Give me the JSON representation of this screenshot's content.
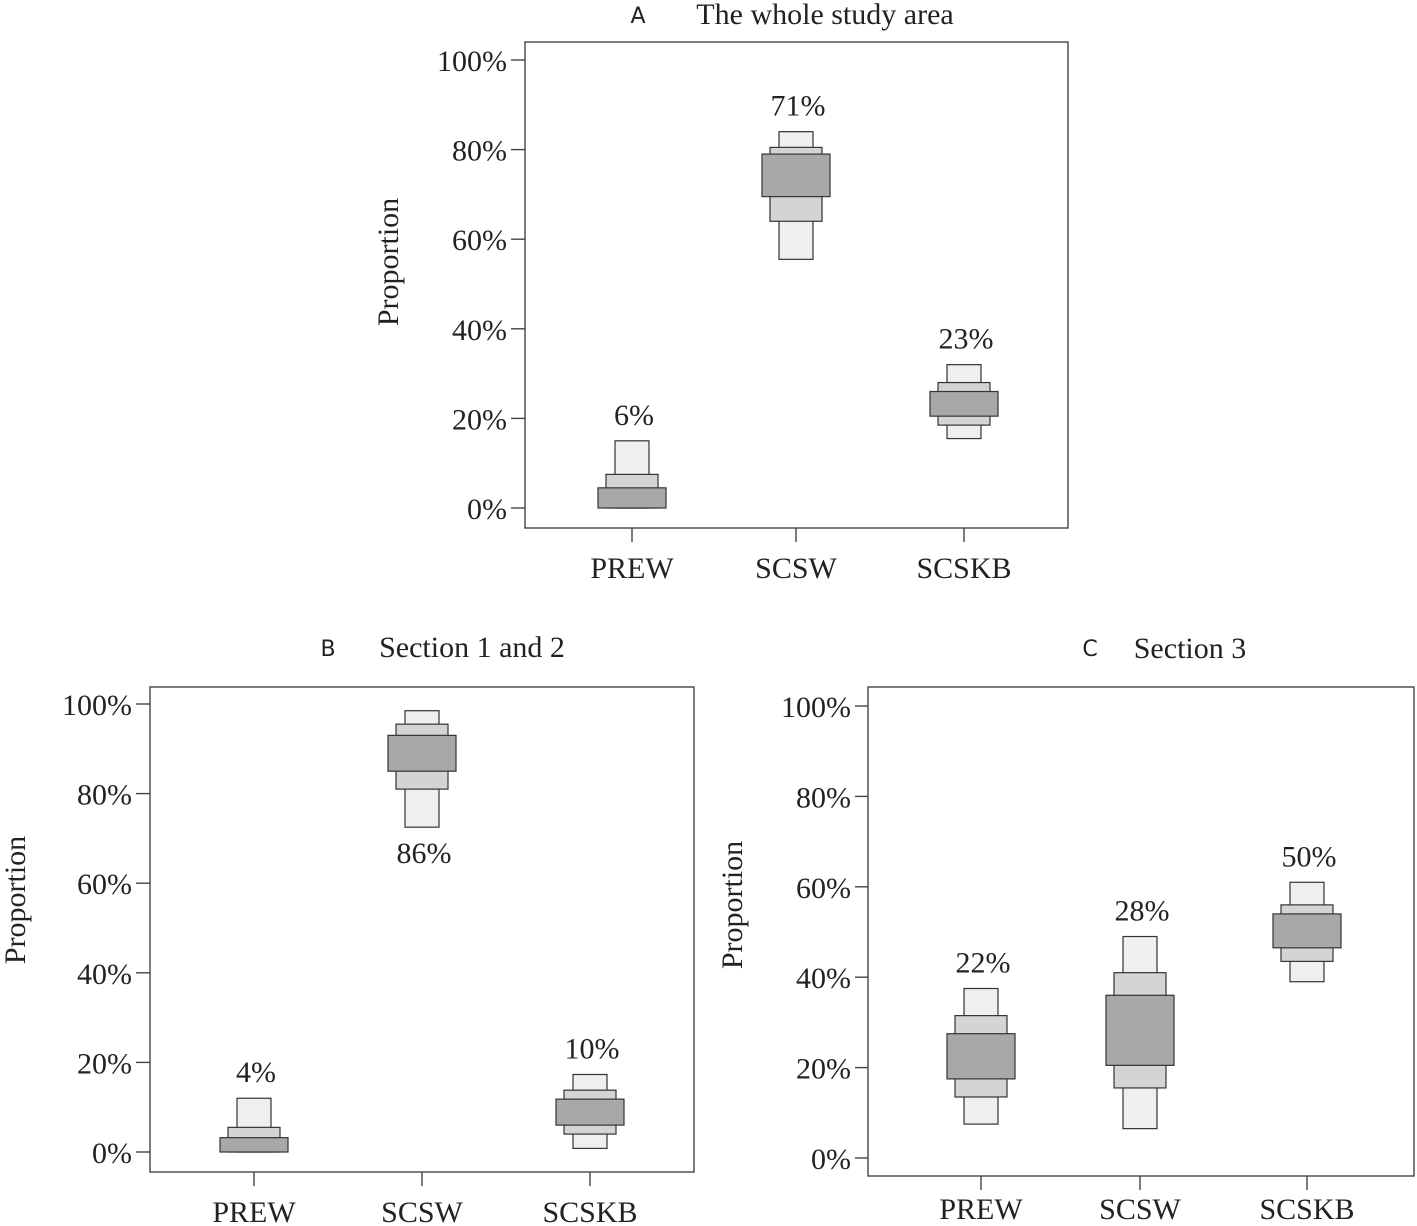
{
  "chart_data": [
    {
      "type": "letter-value-boxplot",
      "panel_letter": "A",
      "title": "The whole study area",
      "ylabel": "Proportion",
      "ylim": [
        0,
        100
      ],
      "yticks": [
        "0%",
        "20%",
        "40%",
        "60%",
        "80%",
        "100%"
      ],
      "categories": [
        "PREW",
        "SCSW",
        "SCSKB"
      ],
      "series": [
        {
          "name": "PREW",
          "median_label": "6%",
          "label_position": "above",
          "levels": [
            [
              0,
              15
            ],
            [
              0,
              7.5
            ],
            [
              0,
              4.5
            ]
          ]
        },
        {
          "name": "SCSW",
          "median_label": "71%",
          "label_position": "above",
          "levels": [
            [
              55.5,
              84
            ],
            [
              64,
              80.5
            ],
            [
              69.5,
              79
            ]
          ]
        },
        {
          "name": "SCSKB",
          "median_label": "23%",
          "label_position": "above",
          "levels": [
            [
              15.5,
              32
            ],
            [
              18.5,
              28
            ],
            [
              20.5,
              26
            ]
          ]
        }
      ],
      "colors": [
        "#efefef",
        "#d4d4d4",
        "#a8a8a8"
      ]
    },
    {
      "type": "letter-value-boxplot",
      "panel_letter": "B",
      "title": "Section 1 and 2",
      "ylabel": "Proportion",
      "ylim": [
        0,
        100
      ],
      "yticks": [
        "0%",
        "20%",
        "40%",
        "60%",
        "80%",
        "100%"
      ],
      "categories": [
        "PREW",
        "SCSW",
        "SCSKB"
      ],
      "series": [
        {
          "name": "PREW",
          "median_label": "4%",
          "label_position": "above",
          "levels": [
            [
              0,
              12
            ],
            [
              0,
              5.5
            ],
            [
              0,
              3.2
            ]
          ]
        },
        {
          "name": "SCSW",
          "median_label": "86%",
          "label_position": "below",
          "levels": [
            [
              72.5,
              98.5
            ],
            [
              81,
              95.5
            ],
            [
              85,
              93
            ]
          ]
        },
        {
          "name": "SCSKB",
          "median_label": "10%",
          "label_position": "above",
          "levels": [
            [
              0.8,
              17.3
            ],
            [
              4,
              13.8
            ],
            [
              6,
              11.8
            ]
          ]
        }
      ],
      "colors": [
        "#efefef",
        "#d4d4d4",
        "#a8a8a8"
      ]
    },
    {
      "type": "letter-value-boxplot",
      "panel_letter": "C",
      "title": "Section 3",
      "ylabel": "Proportion",
      "ylim": [
        0,
        100
      ],
      "yticks": [
        "0%",
        "20%",
        "40%",
        "60%",
        "80%",
        "100%"
      ],
      "categories": [
        "PREW",
        "SCSW",
        "SCSKB"
      ],
      "series": [
        {
          "name": "PREW",
          "median_label": "22%",
          "label_position": "above",
          "levels": [
            [
              7.5,
              37.5
            ],
            [
              13.5,
              31.5
            ],
            [
              17.5,
              27.5
            ]
          ]
        },
        {
          "name": "SCSW",
          "median_label": "28%",
          "label_position": "above",
          "levels": [
            [
              6.5,
              49
            ],
            [
              15.5,
              41
            ],
            [
              20.5,
              36
            ]
          ]
        },
        {
          "name": "SCSKB",
          "median_label": "50%",
          "label_position": "above",
          "levels": [
            [
              39,
              61
            ],
            [
              43.5,
              56
            ],
            [
              46.5,
              54
            ]
          ]
        }
      ],
      "colors": [
        "#efefef",
        "#d4d4d4",
        "#a8a8a8"
      ]
    }
  ]
}
